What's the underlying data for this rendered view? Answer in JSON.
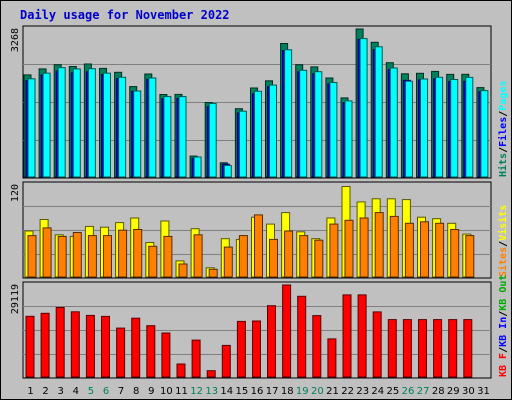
{
  "chart_data": {
    "type": "bar",
    "title": "Daily usage for November 2022",
    "categories": [
      "1",
      "2",
      "3",
      "4",
      "5",
      "6",
      "7",
      "8",
      "9",
      "10",
      "11",
      "12",
      "13",
      "14",
      "15",
      "16",
      "17",
      "18",
      "19",
      "20",
      "21",
      "22",
      "23",
      "24",
      "25",
      "26",
      "27",
      "28",
      "29",
      "30",
      "31"
    ],
    "weekend_days": [
      "5",
      "6",
      "12",
      "13",
      "19",
      "20",
      "26",
      "27"
    ],
    "panels": [
      {
        "name": "hits-files-pages",
        "max_label": "3268",
        "ylim": [
          0,
          3268
        ],
        "right_labels": [
          {
            "text": "Hits",
            "color": "#00805c"
          },
          {
            "text": "/",
            "color": "#000000"
          },
          {
            "text": "Files",
            "color": "#0000ff"
          },
          {
            "text": "/",
            "color": "#000000"
          },
          {
            "text": "Pages",
            "color": "#00ffff"
          }
        ],
        "series": [
          {
            "name": "Hits",
            "color": "#00805c",
            "values": [
              2255,
              2388,
              2479,
              2440,
              2496,
              2399,
              2311,
              1997,
              2275,
              1822,
              1823,
              461,
              1644,
              314,
              1508,
              1965,
              2124,
              2947,
              2479,
              2432,
              2186,
              1747,
              3268,
              2974,
              2523,
              2279,
              2290,
              2331,
              2265,
              2268,
              1973
            ]
          },
          {
            "name": "Files",
            "color": "#0000ff",
            "values": [
              2130,
              2249,
              2339,
              2300,
              2320,
              2262,
              2174,
              1892,
              2155,
              1726,
              1738,
              413,
              1551,
              283,
              1416,
              1837,
              1990,
              2794,
              2321,
              2281,
              2058,
              1641,
              3038,
              2811,
              2369,
              2134,
              2144,
              2168,
              2108,
              2114,
              1883
            ]
          },
          {
            "name": "Pages",
            "color": "#00ffff",
            "values": [
              2169,
              2292,
              2413,
              2386,
              2392,
              2291,
              2202,
              1899,
              2185,
              1775,
              1775,
              441,
              1625,
              257,
              1453,
              1892,
              2029,
              2808,
              2357,
              2325,
              2087,
              1680,
              3056,
              2876,
              2407,
              2116,
              2163,
              2201,
              2154,
              2199,
              1908
            ]
          }
        ]
      },
      {
        "name": "visits-sites",
        "max_label": "120",
        "ylim": [
          0,
          120
        ],
        "right_labels": [
          {
            "text": "Sites",
            "color": "#ff8000"
          },
          {
            "text": "/",
            "color": "#000000"
          },
          {
            "text": "Visits",
            "color": "#ffff00"
          }
        ],
        "series": [
          {
            "name": "Visits",
            "color": "#ffff00",
            "values": [
              60,
              75,
              55,
              53,
              66,
              65,
              71,
              77,
              45,
              73,
              21,
              63,
              12,
              50,
              49,
              78,
              69,
              84,
              59,
              50,
              77,
              118,
              98,
              102,
              102,
              101,
              78,
              76,
              70,
              56,
              0
            ]
          },
          {
            "name": "Sites",
            "color": "#ff8000",
            "values": [
              54,
              64,
              53,
              58,
              54,
              54,
              61,
              62,
              40,
              53,
              17,
              55,
              10,
              39,
              54,
              81,
              49,
              60,
              54,
              48,
              69,
              74,
              77,
              84,
              79,
              70,
              72,
              70,
              62,
              54,
              0
            ]
          }
        ]
      },
      {
        "name": "kbytes",
        "max_label": "29119",
        "ylim": [
          0,
          29119
        ],
        "right_labels": [
          {
            "text": "KB F",
            "color": "#ff0000"
          },
          {
            "text": "/",
            "color": "#000000"
          },
          {
            "text": "KB In",
            "color": "#0000ff"
          },
          {
            "text": "/",
            "color": "#000000"
          },
          {
            "text": "KB Out",
            "color": "#00aa00"
          }
        ],
        "series": [
          {
            "name": "KB F",
            "color": "#ff0000",
            "values": [
              19211,
              20168,
              22011,
              20645,
              19486,
              19195,
              15492,
              18601,
              16227,
              13929,
              4113,
              11680,
              1997,
              10005,
              17584,
              17725,
              22562,
              29119,
              25533,
              19425,
              12070,
              25973,
              25973,
              20612,
              18156,
              18156,
              18156,
              18156,
              18156,
              18156,
              0
            ]
          }
        ]
      }
    ]
  }
}
